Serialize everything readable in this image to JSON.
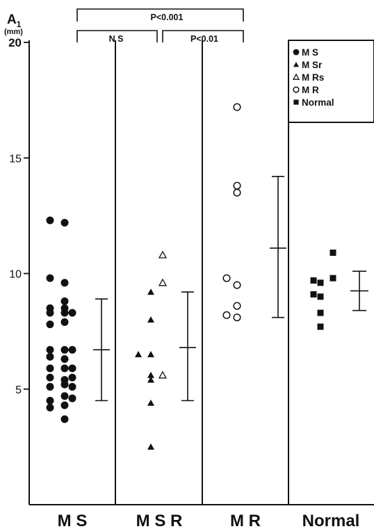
{
  "chart_data": {
    "type": "scatter",
    "ylabel_main": "A",
    "ylabel_sub": "1",
    "yunit": "(mm)",
    "ylim": [
      0,
      20
    ],
    "yticks": [
      5,
      10,
      15,
      20
    ],
    "groups": [
      {
        "label": "M S",
        "mean": 6.7,
        "sd_low": 4.5,
        "sd_high": 8.9
      },
      {
        "label": "M S R",
        "mean": 6.8,
        "sd_low": 4.5,
        "sd_high": 9.2
      },
      {
        "label": "M R",
        "mean": 11.1,
        "sd_low": 8.1,
        "sd_high": 14.2
      },
      {
        "label": "Normal",
        "mean": 9.25,
        "sd_low": 8.4,
        "sd_high": 10.1
      }
    ],
    "series": [
      {
        "name": "M S",
        "marker": "filled-circle",
        "group": 0,
        "points": [
          {
            "slot": 0,
            "y": 12.3
          },
          {
            "slot": 1,
            "y": 12.2
          },
          {
            "slot": 0,
            "y": 9.8
          },
          {
            "slot": 1,
            "y": 9.6
          },
          {
            "slot": 1,
            "y": 8.8
          },
          {
            "slot": 0,
            "y": 8.5
          },
          {
            "slot": 1,
            "y": 8.5
          },
          {
            "slot": 0,
            "y": 8.3
          },
          {
            "slot": 1,
            "y": 8.3
          },
          {
            "slot": 2,
            "y": 8.3
          },
          {
            "slot": 0,
            "y": 7.8
          },
          {
            "slot": 1,
            "y": 7.9
          },
          {
            "slot": 0,
            "y": 6.7
          },
          {
            "slot": 1,
            "y": 6.7
          },
          {
            "slot": 2,
            "y": 6.7
          },
          {
            "slot": 0,
            "y": 6.4
          },
          {
            "slot": 1,
            "y": 6.3
          },
          {
            "slot": 0,
            "y": 5.9
          },
          {
            "slot": 1,
            "y": 5.9
          },
          {
            "slot": 2,
            "y": 5.9
          },
          {
            "slot": 0,
            "y": 5.5
          },
          {
            "slot": 1,
            "y": 5.4
          },
          {
            "slot": 2,
            "y": 5.5
          },
          {
            "slot": 0,
            "y": 5.1
          },
          {
            "slot": 1,
            "y": 5.2
          },
          {
            "slot": 2,
            "y": 5.1
          },
          {
            "slot": 0,
            "y": 4.5
          },
          {
            "slot": 1,
            "y": 4.7
          },
          {
            "slot": 2,
            "y": 4.6
          },
          {
            "slot": 0,
            "y": 4.2
          },
          {
            "slot": 1,
            "y": 4.3
          },
          {
            "slot": 1,
            "y": 3.7
          }
        ]
      },
      {
        "name": "M Sr",
        "marker": "filled-triangle",
        "group": 1,
        "points": [
          {
            "slot": 1,
            "y": 9.2
          },
          {
            "slot": 1,
            "y": 8.0
          },
          {
            "slot": 0,
            "y": 6.5
          },
          {
            "slot": 1,
            "y": 6.5
          },
          {
            "slot": 1,
            "y": 5.6
          },
          {
            "slot": 2,
            "y": 5.4
          },
          {
            "slot": 1,
            "y": 4.4
          },
          {
            "slot": 1,
            "y": 2.5
          }
        ]
      },
      {
        "name": "M Rs",
        "marker": "open-triangle",
        "group": 1,
        "points": [
          {
            "slot": 3,
            "y": 10.8
          },
          {
            "slot": 3,
            "y": 9.6
          },
          {
            "slot": 3,
            "y": 5.6
          }
        ]
      },
      {
        "name": "M R",
        "marker": "open-circle",
        "group": 2,
        "points": [
          {
            "slot": 1,
            "y": 17.2
          },
          {
            "slot": 1,
            "y": 13.8
          },
          {
            "slot": 1,
            "y": 13.5
          },
          {
            "slot": 0,
            "y": 9.8
          },
          {
            "slot": 1,
            "y": 9.5
          },
          {
            "slot": 1,
            "y": 8.6
          },
          {
            "slot": 0,
            "y": 8.2
          },
          {
            "slot": 1,
            "y": 8.1
          }
        ]
      },
      {
        "name": "Normal",
        "marker": "filled-square",
        "group": 3,
        "points": [
          {
            "slot": 2,
            "y": 10.9
          },
          {
            "slot": 0,
            "y": 9.7
          },
          {
            "slot": 1,
            "y": 9.6
          },
          {
            "slot": 2,
            "y": 9.8
          },
          {
            "slot": 0,
            "y": 9.1
          },
          {
            "slot": 1,
            "y": 9.0
          },
          {
            "slot": 1,
            "y": 8.3
          },
          {
            "slot": 1,
            "y": 7.7
          }
        ]
      }
    ],
    "significance": [
      {
        "label": "P<0.001",
        "from": 0,
        "to": 2
      },
      {
        "label": "N S",
        "from": 0,
        "to": 1
      },
      {
        "label": "P<0.01",
        "from": 1,
        "to": 2
      }
    ],
    "legend": {
      "placement": "top-right",
      "entries": [
        {
          "marker": "filled-circle",
          "label": "M S"
        },
        {
          "marker": "filled-triangle",
          "label": "M Sr"
        },
        {
          "marker": "open-triangle",
          "label": "M Rs"
        },
        {
          "marker": "open-circle",
          "label": "M R"
        },
        {
          "marker": "filled-square",
          "label": "Normal"
        }
      ]
    }
  }
}
